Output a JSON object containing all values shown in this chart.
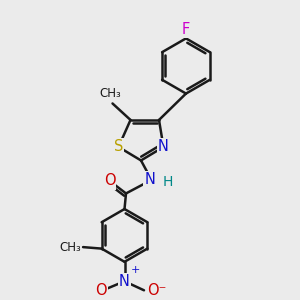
{
  "background_color": "#ebebeb",
  "bond_color": "#1a1a1a",
  "bond_width": 1.8,
  "dbo": 0.07,
  "atoms": {
    "F": {
      "color": "#cc00cc",
      "fontsize": 10.5
    },
    "S": {
      "color": "#b8a000",
      "fontsize": 10.5
    },
    "N": {
      "color": "#1010cc",
      "fontsize": 10.5
    },
    "O": {
      "color": "#cc0000",
      "fontsize": 10.5
    },
    "H": {
      "color": "#008888",
      "fontsize": 10.0
    }
  },
  "fig_width": 3.0,
  "fig_height": 3.0,
  "dpi": 100,
  "xlim": [
    0,
    10
  ],
  "ylim": [
    0,
    10
  ]
}
